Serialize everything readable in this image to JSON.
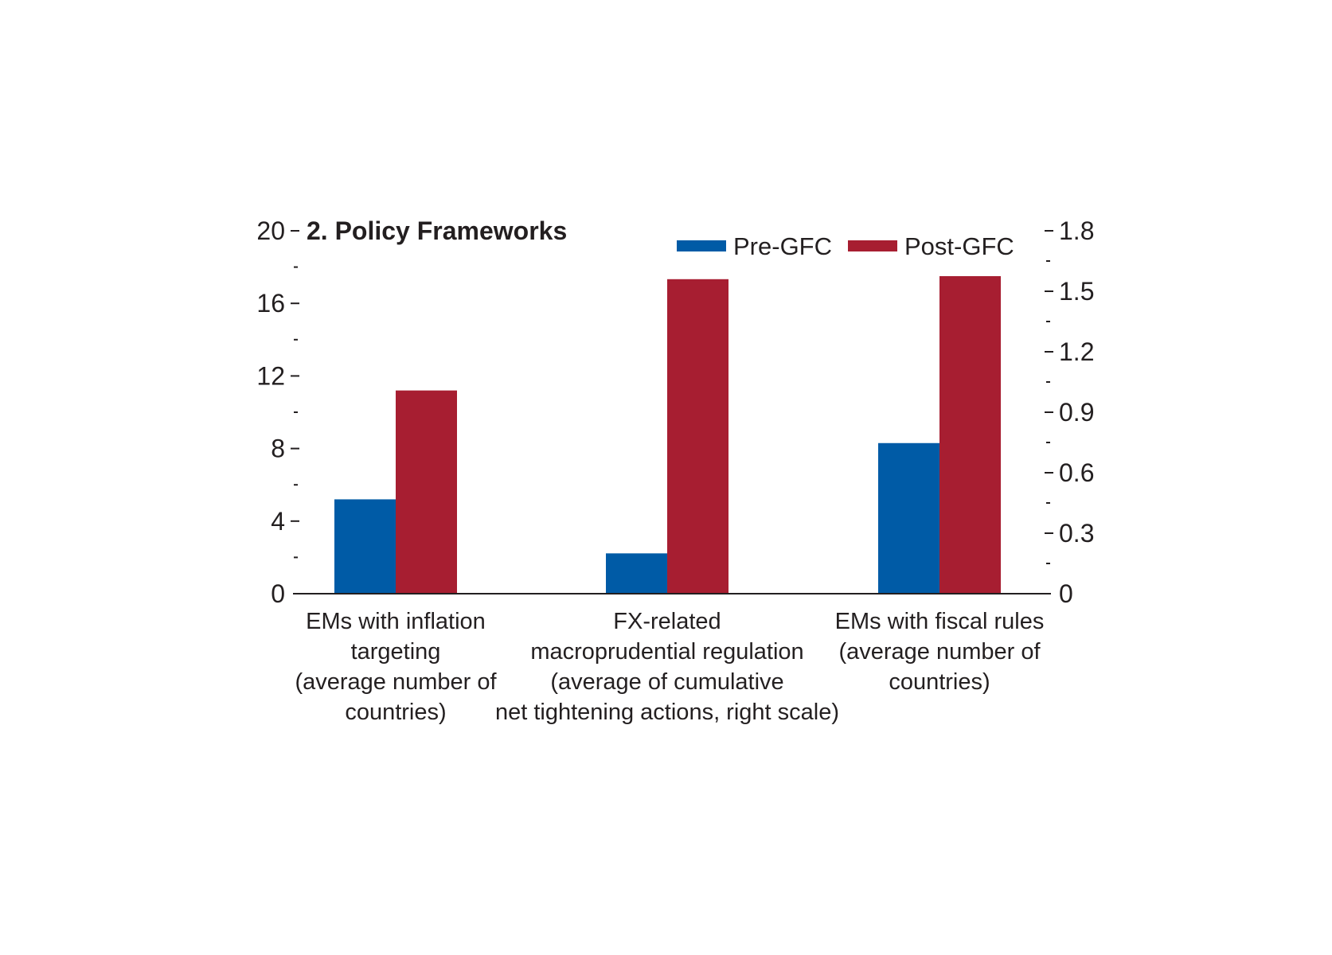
{
  "chart_data": {
    "type": "bar",
    "title": "2. Policy Frameworks",
    "categories": [
      [
        "EMs with inflation",
        "targeting",
        "(average number of",
        "countries)"
      ],
      [
        "FX-related",
        "macroprudential regulation",
        "(average of cumulative",
        "net tightening actions, right scale)"
      ],
      [
        "EMs with fiscal rules",
        "(average number of",
        "countries)"
      ]
    ],
    "category_axis": [
      "left",
      "right",
      "left"
    ],
    "series": [
      {
        "name": "Pre-GFC",
        "color": "#005ba6",
        "values": [
          5.2,
          0.2,
          8.3
        ]
      },
      {
        "name": "Post-GFC",
        "color": "#a71e31",
        "values": [
          11.2,
          1.56,
          17.5
        ]
      }
    ],
    "left_axis": {
      "ylim": [
        0,
        20
      ],
      "ticks": [
        "0",
        "4",
        "8",
        "12",
        "16",
        "20"
      ],
      "tick_values": [
        0,
        4,
        8,
        12,
        16,
        20
      ],
      "minor_tick_values": [
        2,
        6,
        10,
        14,
        18
      ]
    },
    "right_axis": {
      "ylim": [
        0,
        1.8
      ],
      "ticks": [
        "0",
        "0.3",
        "0.6",
        "0.9",
        "1.2",
        "1.5",
        "1.8"
      ],
      "tick_values": [
        0,
        0.3,
        0.6,
        0.9,
        1.2,
        1.5,
        1.8
      ],
      "minor_tick_values": [
        0.15,
        0.45,
        0.75,
        1.05,
        1.35,
        1.65
      ]
    },
    "legend_position": "top-right",
    "grid": false
  }
}
